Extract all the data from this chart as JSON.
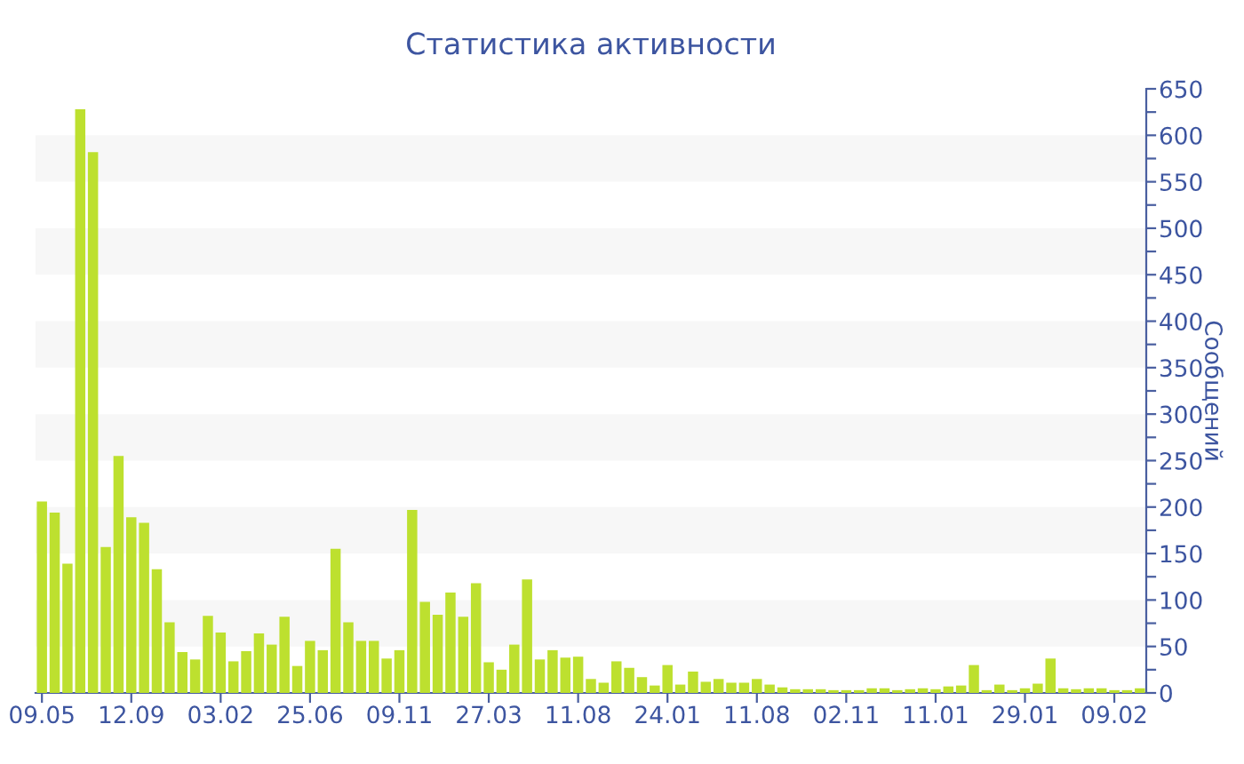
{
  "chart_data": {
    "type": "bar",
    "title": "Статистика активности",
    "ylabel": "Сообщений",
    "categories": [
      "09.05",
      null,
      null,
      null,
      null,
      null,
      null,
      "12.09",
      null,
      null,
      null,
      null,
      null,
      null,
      "03.02",
      null,
      null,
      null,
      null,
      null,
      null,
      "25.06",
      null,
      null,
      null,
      null,
      null,
      null,
      "09.11",
      null,
      null,
      null,
      null,
      null,
      null,
      "27.03",
      null,
      null,
      null,
      null,
      null,
      null,
      "11.08",
      null,
      null,
      null,
      null,
      null,
      null,
      "24.01",
      null,
      null,
      null,
      null,
      null,
      null,
      "11.08",
      null,
      null,
      null,
      null,
      null,
      null,
      "02.11",
      null,
      null,
      null,
      null,
      null,
      null,
      "11.01",
      null,
      null,
      null,
      null,
      null,
      null,
      "29.01",
      null,
      null,
      null,
      null,
      null,
      null,
      "09.02",
      null,
      null
    ],
    "values": [
      206,
      194,
      139,
      628,
      582,
      157,
      255,
      189,
      183,
      133,
      76,
      44,
      36,
      83,
      65,
      34,
      45,
      64,
      52,
      82,
      29,
      56,
      46,
      155,
      76,
      56,
      56,
      37,
      46,
      197,
      98,
      84,
      108,
      82,
      118,
      33,
      25,
      52,
      122,
      36,
      46,
      38,
      39,
      15,
      11,
      34,
      27,
      17,
      8,
      30,
      9,
      23,
      12,
      15,
      11,
      11,
      15,
      9,
      6,
      4,
      4,
      4,
      3,
      3,
      3,
      5,
      5,
      3,
      4,
      5,
      4,
      7,
      8,
      30,
      3,
      9,
      3,
      5,
      10,
      37,
      5,
      4,
      5,
      5,
      3,
      3,
      5
    ],
    "color": "#bde02f",
    "ylim": [
      0,
      650
    ],
    "yticks": [
      0,
      {
        "value": 25,
        "label": null
      },
      50,
      {
        "value": 75,
        "label": null
      },
      100,
      {
        "value": 125,
        "label": null
      },
      150,
      {
        "value": 175,
        "label": null
      },
      200,
      {
        "value": 225,
        "label": null
      },
      250,
      {
        "value": 275,
        "label": null
      },
      300,
      {
        "value": 325,
        "label": null
      },
      350,
      {
        "value": 375,
        "label": null
      },
      400,
      {
        "value": 425,
        "label": null
      },
      450,
      {
        "value": 475,
        "label": null
      },
      500,
      {
        "value": 525,
        "label": null
      },
      550,
      {
        "value": 575,
        "label": null
      },
      600,
      {
        "value": 625,
        "label": null
      },
      650
    ],
    "bands": [
      {
        "axis": "y",
        "from": 50,
        "to": 100,
        "color": "#f7f7f7"
      },
      {
        "axis": "y",
        "from": 150,
        "to": 200,
        "color": "#f7f7f7"
      },
      {
        "axis": "y",
        "from": 250,
        "to": 300,
        "color": "#f7f7f7"
      },
      {
        "axis": "y",
        "from": 350,
        "to": 400,
        "color": "#f7f7f7"
      },
      {
        "axis": "y",
        "from": 450,
        "to": 500,
        "color": "#f7f7f7"
      },
      {
        "axis": "y",
        "from": 550,
        "to": 600,
        "color": "#f7f7f7"
      }
    ],
    "grid": false,
    "legend": false
  }
}
